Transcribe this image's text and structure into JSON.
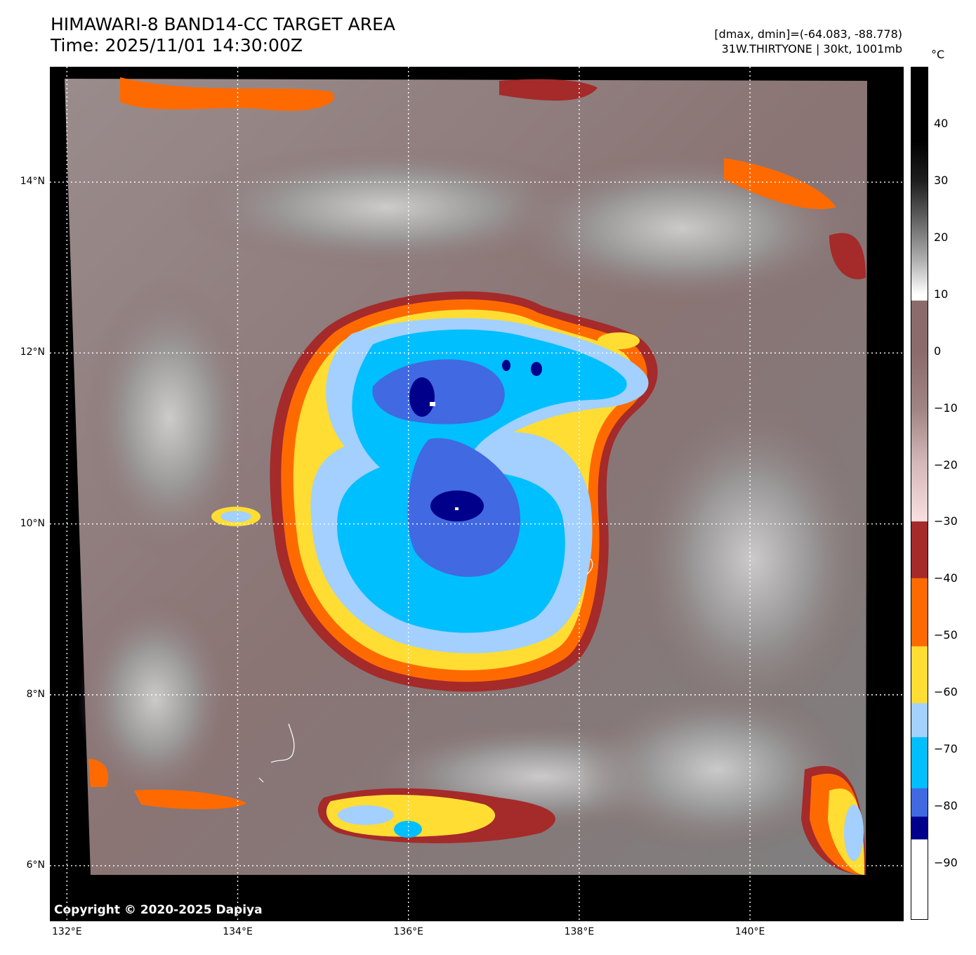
{
  "header": {
    "title_line1": "HIMAWARI-8 BAND14-CC TARGET AREA",
    "title_line2": "Time: 2025/11/01 14:30:00Z",
    "info_line1": "[dmax, dmin]=(-64.083, -88.778)",
    "info_line2": "31W.THIRTYONE | 30kt, 1001mb"
  },
  "map": {
    "copyright": "Copyright © 2020-2025 Dapiya",
    "lat_labels": [
      "14°N",
      "12°N",
      "10°N",
      "8°N",
      "6°N"
    ],
    "lon_labels": [
      "132°E",
      "134°E",
      "136°E",
      "138°E",
      "140°E"
    ],
    "lat_values": [
      14,
      12,
      10,
      8,
      6
    ],
    "lon_values": [
      132,
      134,
      136,
      138,
      140
    ],
    "lat_range": [
      5.35,
      15.35
    ],
    "lon_range": [
      131.8,
      141.8
    ]
  },
  "colorbar": {
    "unit": "°C",
    "ticks": [
      "40",
      "30",
      "20",
      "10",
      "0",
      "−10",
      "−20",
      "−30",
      "−40",
      "−50",
      "−60",
      "−70",
      "−80",
      "−90"
    ],
    "tick_values": [
      40,
      30,
      20,
      10,
      0,
      -10,
      -20,
      -30,
      -40,
      -50,
      -60,
      -70,
      -80,
      -90
    ],
    "range": [
      -100,
      50
    ],
    "colors": {
      "white": "#ffffff",
      "navy": "#00008b",
      "royal_blue": "#4169e1",
      "deep_sky": "#00bfff",
      "light_blue": "#a3d0ff",
      "yellow": "#ffdd33",
      "orange": "#ff6a00",
      "dark_red": "#a52a2a",
      "pink": "#f8dfe0",
      "brown": "#8b6b6b"
    }
  }
}
